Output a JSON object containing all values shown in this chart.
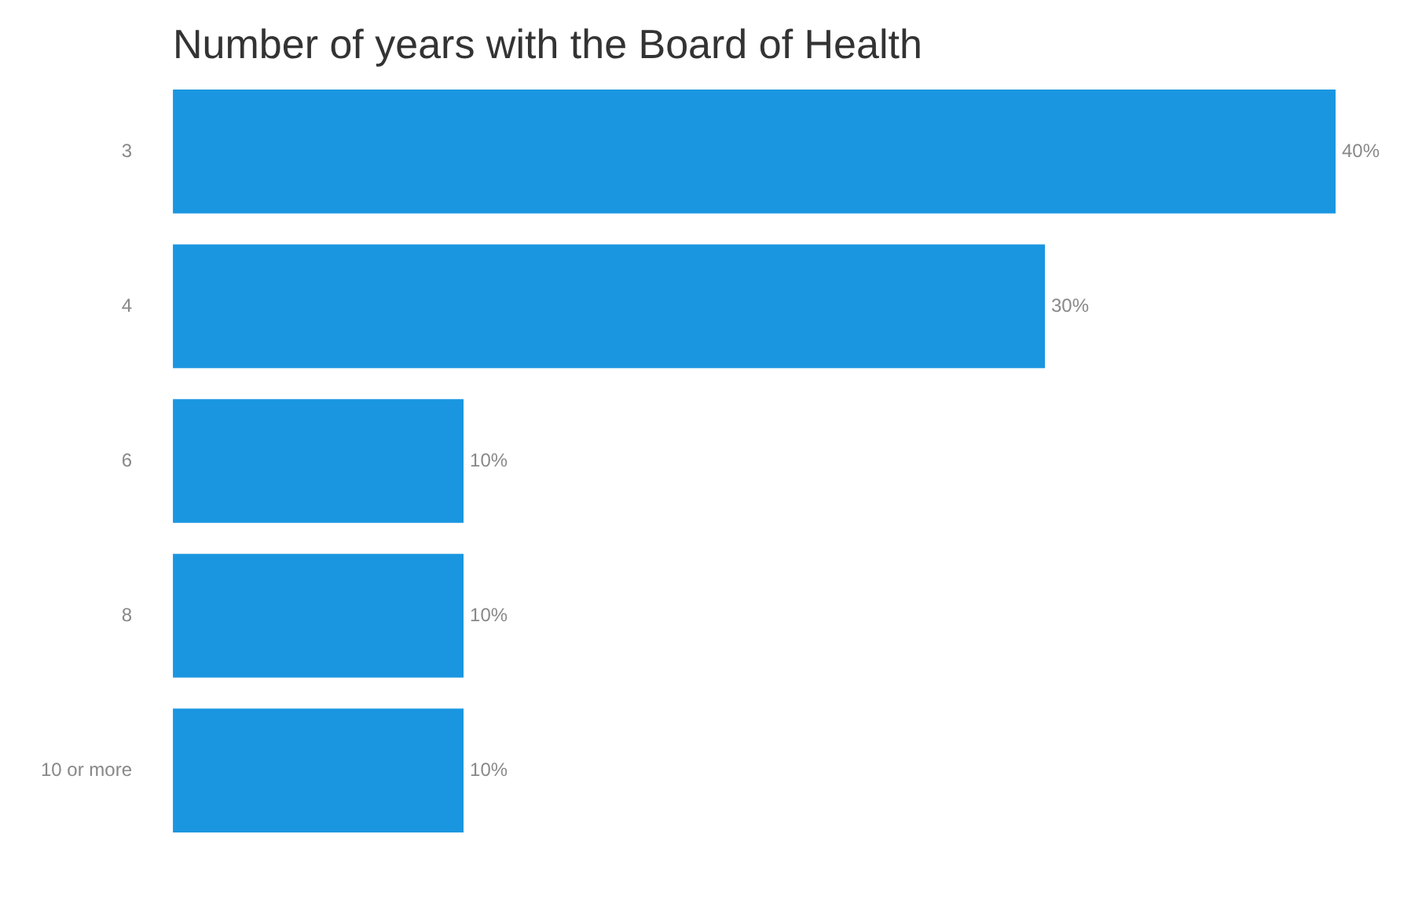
{
  "chart_data": {
    "type": "bar",
    "orientation": "horizontal",
    "title": "Number of years with the Board of Health",
    "categories": [
      "3",
      "4",
      "6",
      "8",
      "10 or more"
    ],
    "values": [
      40,
      30,
      10,
      10,
      10
    ],
    "value_labels": [
      "40%",
      "30%",
      "10%",
      "10%",
      "10%"
    ],
    "color": "#1a96e0"
  }
}
